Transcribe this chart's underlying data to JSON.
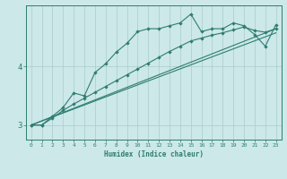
{
  "xlabel": "Humidex (Indice chaleur)",
  "bg_color": "#cce8e8",
  "line_color": "#2e7d70",
  "grid_color": "#aacccc",
  "xlim": [
    -0.5,
    23.5
  ],
  "ylim": [
    2.75,
    5.05
  ],
  "yticks": [
    3,
    4
  ],
  "xtick_labels": [
    "0",
    "1",
    "2",
    "3",
    "4",
    "5",
    "6",
    "7",
    "8",
    "9",
    "10",
    "11",
    "12",
    "13",
    "14",
    "15",
    "16",
    "17",
    "18",
    "19",
    "20",
    "21",
    "22",
    "23"
  ],
  "line1_x": [
    0,
    1,
    2,
    3,
    4,
    5,
    6,
    7,
    8,
    9,
    10,
    11,
    12,
    13,
    14,
    15,
    16,
    17,
    18,
    19,
    20,
    21,
    22,
    23
  ],
  "line1_y": [
    3.0,
    3.0,
    3.15,
    3.3,
    3.55,
    3.5,
    3.9,
    4.05,
    4.25,
    4.4,
    4.6,
    4.65,
    4.65,
    4.7,
    4.75,
    4.9,
    4.6,
    4.65,
    4.65,
    4.75,
    4.7,
    4.55,
    4.35,
    4.72
  ],
  "line2_x": [
    0,
    1,
    2,
    3,
    4,
    5,
    6,
    7,
    8,
    9,
    10,
    11,
    12,
    13,
    14,
    15,
    16,
    17,
    18,
    19,
    20,
    21,
    22,
    23
  ],
  "line2_y": [
    3.0,
    3.0,
    3.12,
    3.25,
    3.36,
    3.46,
    3.56,
    3.66,
    3.76,
    3.86,
    3.96,
    4.06,
    4.16,
    4.26,
    4.35,
    4.44,
    4.49,
    4.54,
    4.58,
    4.63,
    4.68,
    4.62,
    4.59,
    4.65
  ],
  "line3_x": [
    0,
    23
  ],
  "line3_y": [
    3.0,
    4.65
  ],
  "line4_x": [
    0,
    23
  ],
  "line4_y": [
    3.0,
    4.58
  ]
}
